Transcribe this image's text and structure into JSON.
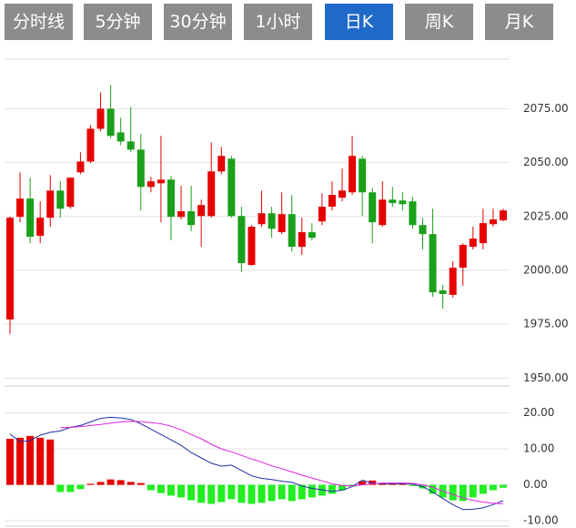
{
  "tabs": {
    "items": [
      "分时线",
      "5分钟",
      "30分钟",
      "1小时",
      "日K",
      "周K",
      "月K"
    ],
    "active": 4
  },
  "chart_data": [
    {
      "type": "candlestick",
      "up_color": "#e60000",
      "down_color": "#1aa01a",
      "grid": true,
      "ylim": [
        1948,
        2098
      ],
      "yticks": [
        {
          "value": 1950,
          "label": "1950.00"
        },
        {
          "value": 1975,
          "label": "1975.00"
        },
        {
          "value": 2000,
          "label": "2000.00"
        },
        {
          "value": 2025,
          "label": "2025.00"
        },
        {
          "value": 2050,
          "label": "2050.00"
        },
        {
          "value": 2075,
          "label": "2075.00"
        }
      ],
      "open": [
        1977.2,
        2024.8,
        2033.3,
        2016,
        2024.4,
        2037,
        2029.5,
        2045.5,
        2050.5,
        2065.7,
        2075,
        2064,
        2059.8,
        2056,
        2038.7,
        2040.4,
        2042.1,
        2024.8,
        2027.4,
        2025.2,
        2025.2,
        2045.9,
        2051.8,
        2025.2,
        2002.5,
        2021.4,
        2026.5,
        2017.7,
        2026.1,
        2010.9,
        2017.7,
        2022.7,
        2029.5,
        2033.7,
        2036.2,
        2051.8,
        2036.2,
        2021,
        2032.8,
        2032.4,
        2032,
        2021,
        2016.8,
        1990.7,
        1988.6,
        2001.2,
        2010.9,
        2012.6,
        2021.4,
        2023.2
      ],
      "high": [
        2025,
        2045.5,
        2043,
        2032,
        2044.2,
        2041.3,
        2043,
        2054.8,
        2067.4,
        2082.6,
        2086,
        2070.8,
        2075.8,
        2063.2,
        2043.4,
        2062.4,
        2043.8,
        2039.2,
        2039.2,
        2032.8,
        2059.4,
        2057.3,
        2053.1,
        2029.5,
        2021,
        2037,
        2029.5,
        2036.2,
        2034.9,
        2024.4,
        2021.9,
        2035.8,
        2041.3,
        2047.2,
        2062.4,
        2053.1,
        2038.3,
        2041.3,
        2038.7,
        2036.2,
        2034.1,
        2024.4,
        2028.6,
        1993.2,
        2004.2,
        2012.6,
        2020.2,
        2028.6,
        2028.6,
        2028.6
      ],
      "low": [
        1970.4,
        2022.3,
        2012.6,
        2012.6,
        2020.2,
        2024.4,
        2028.6,
        2044.6,
        2049.7,
        2064.5,
        2061.5,
        2058.1,
        2054.8,
        2027.8,
        2036.2,
        2022.3,
        2013.9,
        2023.6,
        2018.1,
        2010.9,
        2024.4,
        2044.6,
        2024.4,
        1999.1,
        2002.1,
        2020.2,
        2015.1,
        2016.8,
        2008.8,
        2007.1,
        2013.9,
        2021,
        2027.8,
        2032,
        2035,
        2025.2,
        2012.6,
        2020.2,
        2029.5,
        2027.8,
        2019.3,
        2009.7,
        1987.7,
        1982.2,
        1987.3,
        1992.8,
        2009.7,
        2009.7,
        2020.2,
        2022.7
      ],
      "close": [
        2024.4,
        2033.3,
        2015.6,
        2024.4,
        2037,
        2028.6,
        2043,
        2050.5,
        2065.7,
        2075,
        2062.4,
        2059.8,
        2056,
        2038.7,
        2041.3,
        2042.1,
        2024.8,
        2027.4,
        2021,
        2030.3,
        2045.9,
        2053.1,
        2025.2,
        2003.3,
        2020.2,
        2026.5,
        2019.3,
        2026.1,
        2010.9,
        2017.7,
        2015.1,
        2029.5,
        2035,
        2037,
        2053.1,
        2036.2,
        2022.3,
        2032.8,
        2031.2,
        2030.7,
        2021,
        2016.8,
        1989.8,
        1989,
        2001.2,
        2011.8,
        2014.7,
        2021.9,
        2023.6,
        2027.8
      ]
    },
    {
      "type": "macd",
      "up_color": "#e60000",
      "down_color": "#22ee22",
      "dif_color": "#1f2fa8",
      "dea_color": "#e020e0",
      "grid": true,
      "ylim": [
        -11.5,
        27.5
      ],
      "yticks": [
        {
          "value": -10,
          "label": "-10.00"
        },
        {
          "value": 0,
          "label": "0.00"
        },
        {
          "value": 10,
          "label": "10.00"
        },
        {
          "value": 20,
          "label": "20.00"
        }
      ],
      "histogram": [
        12.8,
        13.1,
        13.6,
        13.1,
        12.6,
        -2,
        -2,
        -1.2,
        0.3,
        0.8,
        1.5,
        1.3,
        0.8,
        0.5,
        -1.5,
        -2.3,
        -3,
        -3.5,
        -4.3,
        -5,
        -5.3,
        -4.8,
        -4,
        -5,
        -5.3,
        -5,
        -4.5,
        -4,
        -4.5,
        -4,
        -3.5,
        -3,
        -2.5,
        -1.5,
        -0.5,
        1,
        1.2,
        0.5,
        0.3,
        0.3,
        -0.3,
        -1,
        -2.5,
        -3.5,
        -4.3,
        -4.5,
        -3.5,
        -2.5,
        -1.5,
        -0.8
      ],
      "dif": [
        14.1,
        12,
        12.3,
        13.8,
        14.6,
        15,
        16,
        16.5,
        17.5,
        18.5,
        18.8,
        18.6,
        18.2,
        17,
        15.5,
        14,
        12.5,
        11,
        9,
        7.5,
        6,
        5.2,
        5.5,
        4,
        2.5,
        1.8,
        1.5,
        1,
        0.7,
        -0.3,
        -1,
        -1.4,
        -1.8,
        -1.5,
        -0.5,
        1.3,
        0.5,
        0.3,
        0.3,
        0.3,
        0.2,
        -0.5,
        -2,
        -3.8,
        -5.5,
        -6.9,
        -6.8,
        -6.4,
        -5.5,
        -4.4
      ],
      "dea": [
        null,
        null,
        null,
        null,
        null,
        15.9,
        16,
        16.2,
        16.5,
        16.8,
        17.2,
        17.5,
        17.7,
        17.6,
        17.3,
        17,
        16.3,
        15.3,
        14,
        12.8,
        11.3,
        10,
        9.2,
        8.2,
        7.2,
        6.3,
        5.3,
        4.5,
        3.6,
        2.7,
        1.9,
        1.1,
        0.3,
        -0.2,
        -0.3,
        0,
        0.3,
        0.5,
        0.5,
        0.5,
        0.4,
        0,
        -0.7,
        -1.7,
        -2.7,
        -3.6,
        -4.3,
        -4.8,
        -5.1,
        -5.3
      ]
    }
  ]
}
